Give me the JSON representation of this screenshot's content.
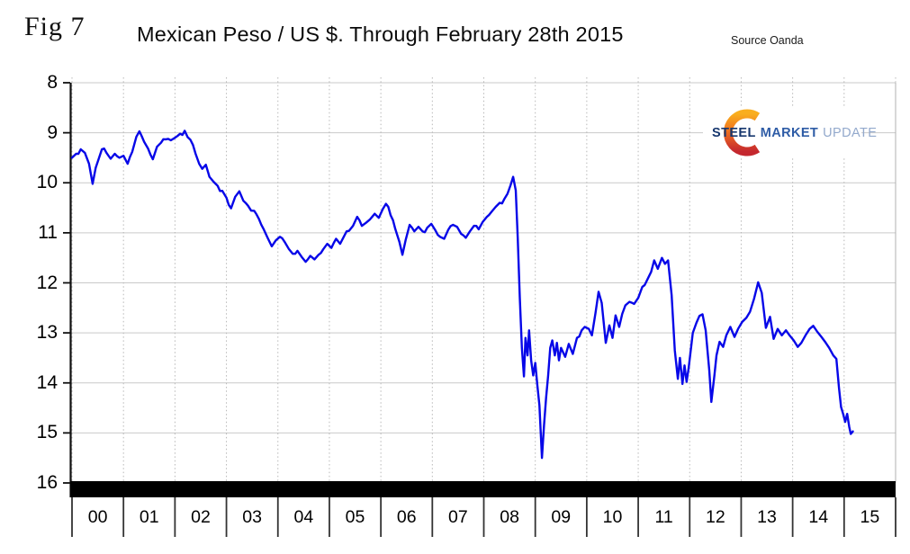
{
  "figure": {
    "label": "Fig 7",
    "title": "Mexican Peso / US $. Through February 28th 2015",
    "source": "Source Oanda"
  },
  "logo": {
    "word1": "STEEL",
    "word2": "MARKET",
    "word3": "UPDATE",
    "colors": {
      "word1": "#17376E",
      "word2": "#2E5CA6",
      "word3": "#93A9CC",
      "crescent_top": "#F9AE1E",
      "crescent_mid": "#F0721F",
      "crescent_bottom": "#C4272E"
    }
  },
  "colors": {
    "line": "#0707E8",
    "grid_horizontal": "#c9c9c9",
    "grid_vertical": "#b8b8b8",
    "axis": "#111111",
    "bottom_bar": "#000000",
    "year_separator": "#333333"
  },
  "chart_data": {
    "type": "line",
    "title": "Mexican Peso / US $. Through February 28th 2015",
    "source": "Source Oanda",
    "x_axis": {
      "labels": [
        "00",
        "01",
        "02",
        "03",
        "04",
        "05",
        "06",
        "07",
        "08",
        "09",
        "10",
        "11",
        "12",
        "13",
        "14",
        "15"
      ],
      "range_years": [
        2000,
        2016
      ],
      "gridlines": "dotted"
    },
    "y_axis": {
      "ticks": [
        8,
        9,
        10,
        11,
        12,
        13,
        14,
        15,
        16
      ],
      "range": [
        8,
        16
      ],
      "increases_downward": true,
      "gridlines": "solid"
    },
    "legend": "none",
    "series": [
      {
        "name": "MXN per USD",
        "color": "#0707E8",
        "points_format": "[years_since_2000, pesos_per_dollar]",
        "points": [
          [
            0.0,
            9.5
          ],
          [
            0.08,
            9.42
          ],
          [
            0.17,
            9.33
          ],
          [
            0.25,
            9.4
          ],
          [
            0.33,
            9.62
          ],
          [
            0.4,
            10.02
          ],
          [
            0.46,
            9.7
          ],
          [
            0.52,
            9.52
          ],
          [
            0.58,
            9.33
          ],
          [
            0.67,
            9.4
          ],
          [
            0.75,
            9.52
          ],
          [
            0.83,
            9.42
          ],
          [
            0.92,
            9.5
          ],
          [
            1.0,
            9.46
          ],
          [
            1.08,
            9.62
          ],
          [
            1.17,
            9.38
          ],
          [
            1.25,
            9.08
          ],
          [
            1.31,
            8.97
          ],
          [
            1.4,
            9.18
          ],
          [
            1.48,
            9.32
          ],
          [
            1.57,
            9.53
          ],
          [
            1.65,
            9.28
          ],
          [
            1.73,
            9.2
          ],
          [
            1.82,
            9.13
          ],
          [
            1.92,
            9.15
          ],
          [
            2.0,
            9.1
          ],
          [
            2.1,
            9.02
          ],
          [
            2.19,
            8.96
          ],
          [
            2.3,
            9.14
          ],
          [
            2.4,
            9.42
          ],
          [
            2.47,
            9.62
          ],
          [
            2.53,
            9.72
          ],
          [
            2.6,
            9.64
          ],
          [
            2.67,
            9.88
          ],
          [
            2.75,
            9.98
          ],
          [
            2.83,
            10.06
          ],
          [
            2.92,
            10.16
          ],
          [
            3.0,
            10.3
          ],
          [
            3.09,
            10.51
          ],
          [
            3.17,
            10.28
          ],
          [
            3.25,
            10.17
          ],
          [
            3.33,
            10.36
          ],
          [
            3.42,
            10.46
          ],
          [
            3.54,
            10.56
          ],
          [
            3.63,
            10.72
          ],
          [
            3.72,
            10.92
          ],
          [
            3.8,
            11.1
          ],
          [
            3.88,
            11.27
          ],
          [
            3.96,
            11.15
          ],
          [
            4.04,
            11.08
          ],
          [
            4.13,
            11.18
          ],
          [
            4.21,
            11.32
          ],
          [
            4.29,
            11.42
          ],
          [
            4.38,
            11.36
          ],
          [
            4.46,
            11.48
          ],
          [
            4.54,
            11.58
          ],
          [
            4.63,
            11.46
          ],
          [
            4.71,
            11.53
          ],
          [
            4.79,
            11.44
          ],
          [
            4.88,
            11.33
          ],
          [
            4.96,
            11.22
          ],
          [
            5.04,
            11.3
          ],
          [
            5.13,
            11.12
          ],
          [
            5.21,
            11.22
          ],
          [
            5.29,
            11.06
          ],
          [
            5.38,
            10.96
          ],
          [
            5.46,
            10.86
          ],
          [
            5.54,
            10.68
          ],
          [
            5.63,
            10.86
          ],
          [
            5.71,
            10.8
          ],
          [
            5.79,
            10.73
          ],
          [
            5.88,
            10.62
          ],
          [
            5.96,
            10.7
          ],
          [
            6.04,
            10.52
          ],
          [
            6.1,
            10.42
          ],
          [
            6.19,
            10.65
          ],
          [
            6.28,
            10.92
          ],
          [
            6.36,
            11.18
          ],
          [
            6.42,
            11.44
          ],
          [
            6.48,
            11.15
          ],
          [
            6.56,
            10.84
          ],
          [
            6.65,
            10.97
          ],
          [
            6.73,
            10.88
          ],
          [
            6.81,
            10.97
          ],
          [
            6.9,
            10.9
          ],
          [
            6.98,
            10.82
          ],
          [
            7.06,
            10.95
          ],
          [
            7.15,
            11.08
          ],
          [
            7.23,
            11.12
          ],
          [
            7.31,
            10.94
          ],
          [
            7.4,
            10.84
          ],
          [
            7.48,
            10.88
          ],
          [
            7.56,
            11.02
          ],
          [
            7.65,
            11.1
          ],
          [
            7.73,
            10.97
          ],
          [
            7.81,
            10.86
          ],
          [
            7.9,
            10.93
          ],
          [
            7.98,
            10.78
          ],
          [
            8.06,
            10.68
          ],
          [
            8.15,
            10.58
          ],
          [
            8.23,
            10.48
          ],
          [
            8.31,
            10.4
          ],
          [
            8.4,
            10.32
          ],
          [
            8.46,
            10.22
          ],
          [
            8.52,
            10.05
          ],
          [
            8.57,
            9.88
          ],
          [
            8.62,
            10.15
          ],
          [
            8.66,
            11.1
          ],
          [
            8.7,
            12.3
          ],
          [
            8.74,
            13.3
          ],
          [
            8.78,
            13.87
          ],
          [
            8.81,
            13.1
          ],
          [
            8.85,
            13.45
          ],
          [
            8.88,
            12.95
          ],
          [
            8.92,
            13.55
          ],
          [
            8.96,
            13.85
          ],
          [
            9.0,
            13.6
          ],
          [
            9.04,
            14.05
          ],
          [
            9.08,
            14.45
          ],
          [
            9.13,
            15.5
          ],
          [
            9.17,
            14.85
          ],
          [
            9.21,
            14.3
          ],
          [
            9.25,
            13.85
          ],
          [
            9.29,
            13.3
          ],
          [
            9.33,
            13.15
          ],
          [
            9.38,
            13.45
          ],
          [
            9.42,
            13.2
          ],
          [
            9.46,
            13.55
          ],
          [
            9.5,
            13.3
          ],
          [
            9.58,
            13.48
          ],
          [
            9.65,
            13.22
          ],
          [
            9.73,
            13.42
          ],
          [
            9.81,
            13.1
          ],
          [
            9.9,
            12.95
          ],
          [
            9.96,
            12.88
          ],
          [
            10.04,
            12.92
          ],
          [
            10.1,
            13.05
          ],
          [
            10.17,
            12.6
          ],
          [
            10.23,
            12.18
          ],
          [
            10.29,
            12.4
          ],
          [
            10.37,
            13.2
          ],
          [
            10.44,
            12.85
          ],
          [
            10.5,
            13.1
          ],
          [
            10.56,
            12.65
          ],
          [
            10.63,
            12.88
          ],
          [
            10.69,
            12.62
          ],
          [
            10.75,
            12.45
          ],
          [
            10.83,
            12.38
          ],
          [
            10.92,
            12.42
          ],
          [
            11.0,
            12.3
          ],
          [
            11.08,
            12.08
          ],
          [
            11.17,
            11.95
          ],
          [
            11.25,
            11.78
          ],
          [
            11.31,
            11.55
          ],
          [
            11.38,
            11.72
          ],
          [
            11.46,
            11.5
          ],
          [
            11.52,
            11.62
          ],
          [
            11.58,
            11.55
          ],
          [
            11.65,
            12.25
          ],
          [
            11.71,
            13.35
          ],
          [
            11.77,
            13.92
          ],
          [
            11.81,
            13.5
          ],
          [
            11.86,
            14.02
          ],
          [
            11.9,
            13.65
          ],
          [
            11.94,
            13.98
          ],
          [
            11.98,
            13.7
          ],
          [
            12.06,
            13.0
          ],
          [
            12.13,
            12.8
          ],
          [
            12.19,
            12.66
          ],
          [
            12.25,
            12.63
          ],
          [
            12.31,
            12.95
          ],
          [
            12.38,
            13.75
          ],
          [
            12.42,
            14.38
          ],
          [
            12.48,
            13.85
          ],
          [
            12.52,
            13.45
          ],
          [
            12.58,
            13.18
          ],
          [
            12.65,
            13.28
          ],
          [
            12.71,
            13.05
          ],
          [
            12.79,
            12.88
          ],
          [
            12.87,
            13.08
          ],
          [
            12.94,
            12.92
          ],
          [
            13.02,
            12.78
          ],
          [
            13.1,
            12.7
          ],
          [
            13.17,
            12.58
          ],
          [
            13.25,
            12.32
          ],
          [
            13.33,
            11.99
          ],
          [
            13.4,
            12.2
          ],
          [
            13.48,
            12.9
          ],
          [
            13.56,
            12.68
          ],
          [
            13.63,
            13.12
          ],
          [
            13.71,
            12.92
          ],
          [
            13.79,
            13.05
          ],
          [
            13.87,
            12.95
          ],
          [
            13.94,
            13.05
          ],
          [
            14.02,
            13.15
          ],
          [
            14.1,
            13.28
          ],
          [
            14.17,
            13.2
          ],
          [
            14.25,
            13.05
          ],
          [
            14.33,
            12.92
          ],
          [
            14.4,
            12.86
          ],
          [
            14.48,
            12.98
          ],
          [
            14.56,
            13.08
          ],
          [
            14.63,
            13.18
          ],
          [
            14.71,
            13.3
          ],
          [
            14.79,
            13.45
          ],
          [
            14.85,
            13.52
          ],
          [
            14.9,
            14.1
          ],
          [
            14.94,
            14.48
          ],
          [
            14.98,
            14.62
          ],
          [
            15.02,
            14.78
          ],
          [
            15.06,
            14.62
          ],
          [
            15.1,
            14.88
          ],
          [
            15.13,
            15.02
          ],
          [
            15.17,
            14.97
          ]
        ]
      }
    ]
  }
}
